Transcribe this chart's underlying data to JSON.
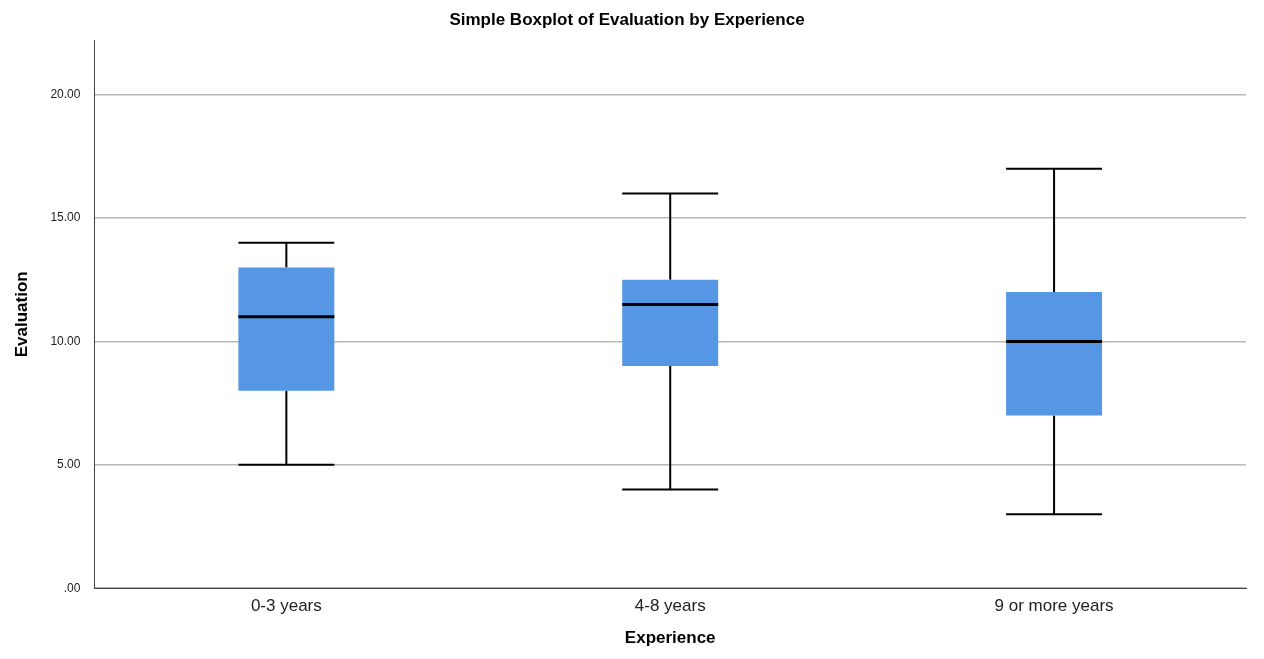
{
  "chart_data": {
    "type": "box",
    "title": "Simple Boxplot of Evaluation by Experience",
    "xlabel": "Experience",
    "ylabel": "Evaluation",
    "categories": [
      "0-3 years",
      "4-8 years",
      "9 or more years"
    ],
    "boxes": [
      {
        "low": 5,
        "q1": 8,
        "median": 11,
        "q3": 13,
        "high": 14
      },
      {
        "low": 4,
        "q1": 9,
        "median": 11.5,
        "q3": 12.5,
        "high": 16
      },
      {
        "low": 3,
        "q1": 7,
        "median": 10,
        "q3": 12,
        "high": 17
      }
    ],
    "color": "#5597e4",
    "ylim": [
      0,
      22.2
    ],
    "yticks": [
      {
        "value": 0,
        "label": ".00"
      },
      {
        "value": 5,
        "label": "5.00"
      },
      {
        "value": 10,
        "label": "10.00"
      },
      {
        "value": 15,
        "label": "15.00"
      },
      {
        "value": 20,
        "label": "20.00"
      }
    ],
    "grid": "y"
  }
}
